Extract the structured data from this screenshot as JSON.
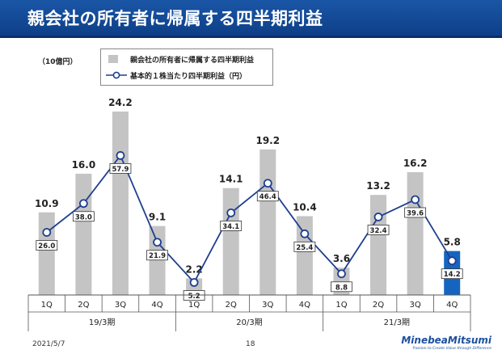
{
  "header": {
    "title": "親会社の所有者に帰属する四半期利益"
  },
  "unit_label": "（10億円）",
  "legend": {
    "bar_label": "親会社の所有者に帰属する四半期利益",
    "line_label": "基本的１株当たり四半期利益（円）"
  },
  "footer": {
    "date": "2021/5/7",
    "page": "18",
    "logo_name": "MinebeaMitsumi",
    "logo_tagline": "Passion to Create Value through Difference"
  },
  "colors": {
    "title_bg": "#1a56a6",
    "bar_gray": "#c4c4c4",
    "bar_highlight": "#1565c0",
    "line": "#1f3f8f"
  },
  "chart_data": {
    "type": "bar",
    "categories": [
      "1Q",
      "2Q",
      "3Q",
      "4Q",
      "1Q",
      "2Q",
      "3Q",
      "4Q",
      "1Q",
      "2Q",
      "3Q",
      "4Q"
    ],
    "groups": [
      {
        "label": "19/3期",
        "count": 4
      },
      {
        "label": "20/3期",
        "count": 4
      },
      {
        "label": "21/3期",
        "count": 4
      }
    ],
    "series": [
      {
        "name": "親会社の所有者に帰属する四半期利益",
        "kind": "bar",
        "values": [
          10.9,
          16.0,
          24.2,
          9.1,
          2.2,
          14.1,
          19.2,
          10.4,
          3.6,
          13.2,
          16.2,
          5.8
        ],
        "labels": [
          "10.9",
          "16.0",
          "24.2",
          "9.1",
          "2.2",
          "14.1",
          "19.2",
          "10.4",
          "3.6",
          "13.2",
          "16.2",
          "5.8"
        ],
        "highlight_index": 11
      },
      {
        "name": "基本的１株当たり四半期利益（円）",
        "kind": "line",
        "values": [
          26.0,
          38.0,
          57.9,
          21.9,
          5.2,
          34.1,
          46.4,
          25.4,
          8.8,
          32.4,
          39.6,
          14.2
        ],
        "labels": [
          "26.0",
          "38.0",
          "57.9",
          "21.9",
          "5.2",
          "34.1",
          "46.4",
          "25.4",
          "8.8",
          "32.4",
          "39.6",
          "14.2"
        ]
      }
    ],
    "bar_ylim": [
      0,
      28
    ],
    "line_ylim": [
      0,
      67
    ],
    "grid": false,
    "legend_position": "top-left"
  }
}
